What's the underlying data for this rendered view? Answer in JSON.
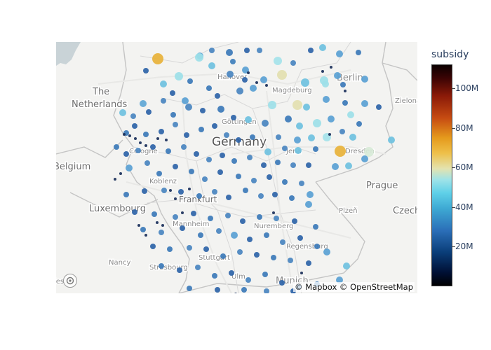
{
  "map": {
    "labels": {
      "germany": "Germany",
      "netherlands_1": "The",
      "netherlands_2": "Netherlands",
      "belgium": "Belgium",
      "luxembourg": "Luxembourg",
      "czech": "Czech",
      "hanover": "Hanover",
      "berlin": "Berlin",
      "magdeburg": "Magdeburg",
      "gottingen": "Göttingen",
      "cologne": "Cologne",
      "koblenz": "Koblenz",
      "frankfurt": "Frankfurt",
      "mannheim": "Mannheim",
      "nuremberg": "Nuremberg",
      "regensburg": "Regensburg",
      "stuttgart": "Stuttgart",
      "munich": "Munich",
      "ulm": "Ulm",
      "strasbourg": "Strasbourg",
      "nancy": "Nancy",
      "jena": "Jena",
      "dresden": "Dresden",
      "prague": "Prague",
      "plzen": "Plzeň",
      "zielona": "Zielona",
      "les": "les"
    },
    "attribution": "© Mapbox © OpenStreetMap",
    "logo_icon": "mapbox-logo-icon",
    "colors": {
      "land": "#f3f3f1",
      "water": "#c9d3d7",
      "border": "#bdbdbd"
    }
  },
  "colorbar": {
    "title": "subsidy",
    "ticks": [
      "100M",
      "80M",
      "60M",
      "40M",
      "20M"
    ],
    "tick_values": [
      100,
      80,
      60,
      40,
      20
    ],
    "range": [
      0,
      112
    ],
    "colors": [
      "#000000",
      "#001035",
      "#0a3d78",
      "#2b6fb8",
      "#3ea9d3",
      "#5fd0e8",
      "#9ee3e8",
      "#e3e3b0",
      "#eec04a",
      "#e59a1c",
      "#c64b12",
      "#8b1a08",
      "#3c0404",
      "#0b0000"
    ]
  }
}
